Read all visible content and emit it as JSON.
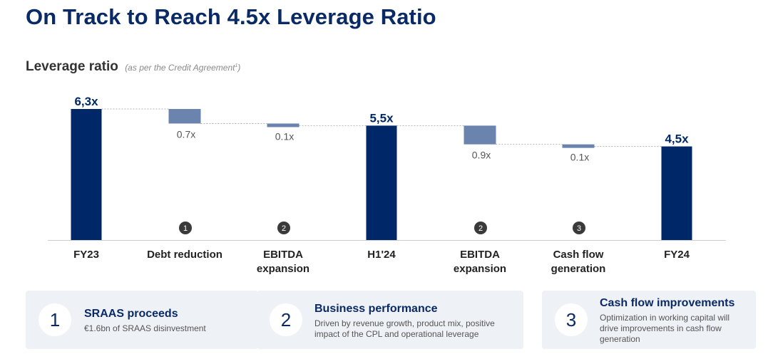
{
  "header": {
    "title": "On Track to Reach 4.5x Leverage Ratio"
  },
  "chart_data": {
    "type": "bar",
    "subtype": "waterfall",
    "title": "Leverage ratio",
    "subtitle": "(as per the Credit Agreement",
    "subtitle_sup": "1",
    "subtitle_close": ")",
    "categories_lines": [
      [
        "FY23"
      ],
      [
        "Debt reduction"
      ],
      [
        "EBITDA",
        "expansion"
      ],
      [
        "H1'24"
      ],
      [
        "EBITDA",
        "expansion"
      ],
      [
        "Cash flow",
        "generation"
      ],
      [
        "FY24"
      ]
    ],
    "steps": [
      {
        "kind": "total",
        "value": 6.3,
        "label": "6,3x"
      },
      {
        "kind": "delta",
        "value": -0.7,
        "label": "0.7x",
        "badge": "1"
      },
      {
        "kind": "delta",
        "value": -0.1,
        "label": "0.1x",
        "badge": "2"
      },
      {
        "kind": "total",
        "value": 5.5,
        "label": "5,5x"
      },
      {
        "kind": "delta",
        "value": -0.9,
        "label": "0.9x",
        "badge": "2"
      },
      {
        "kind": "delta",
        "value": -0.1,
        "label": "0.1x",
        "badge": "3"
      },
      {
        "kind": "total",
        "value": 4.5,
        "label": "4,5x"
      }
    ],
    "ylim": [
      0,
      6.3
    ],
    "grid": false,
    "colors": {
      "total": "#002868",
      "delta": "#6b84ad",
      "connector": "#b5b5b5",
      "badge": "#3a3a3a"
    }
  },
  "cards": [
    {
      "number": "1",
      "title": "SRAAS proceeds",
      "lines": [
        "€1.6bn of SRAAS disinvestment"
      ]
    },
    {
      "number": "2",
      "title": "Business performance",
      "lines": [
        "Driven by revenue growth, product mix, positive",
        "impact of the CPL and operational leverage"
      ]
    },
    {
      "number": "3",
      "title": "Cash flow improvements",
      "lines": [
        "Optimization in working capital will",
        "drive improvements in cash flow",
        "generation"
      ]
    }
  ]
}
